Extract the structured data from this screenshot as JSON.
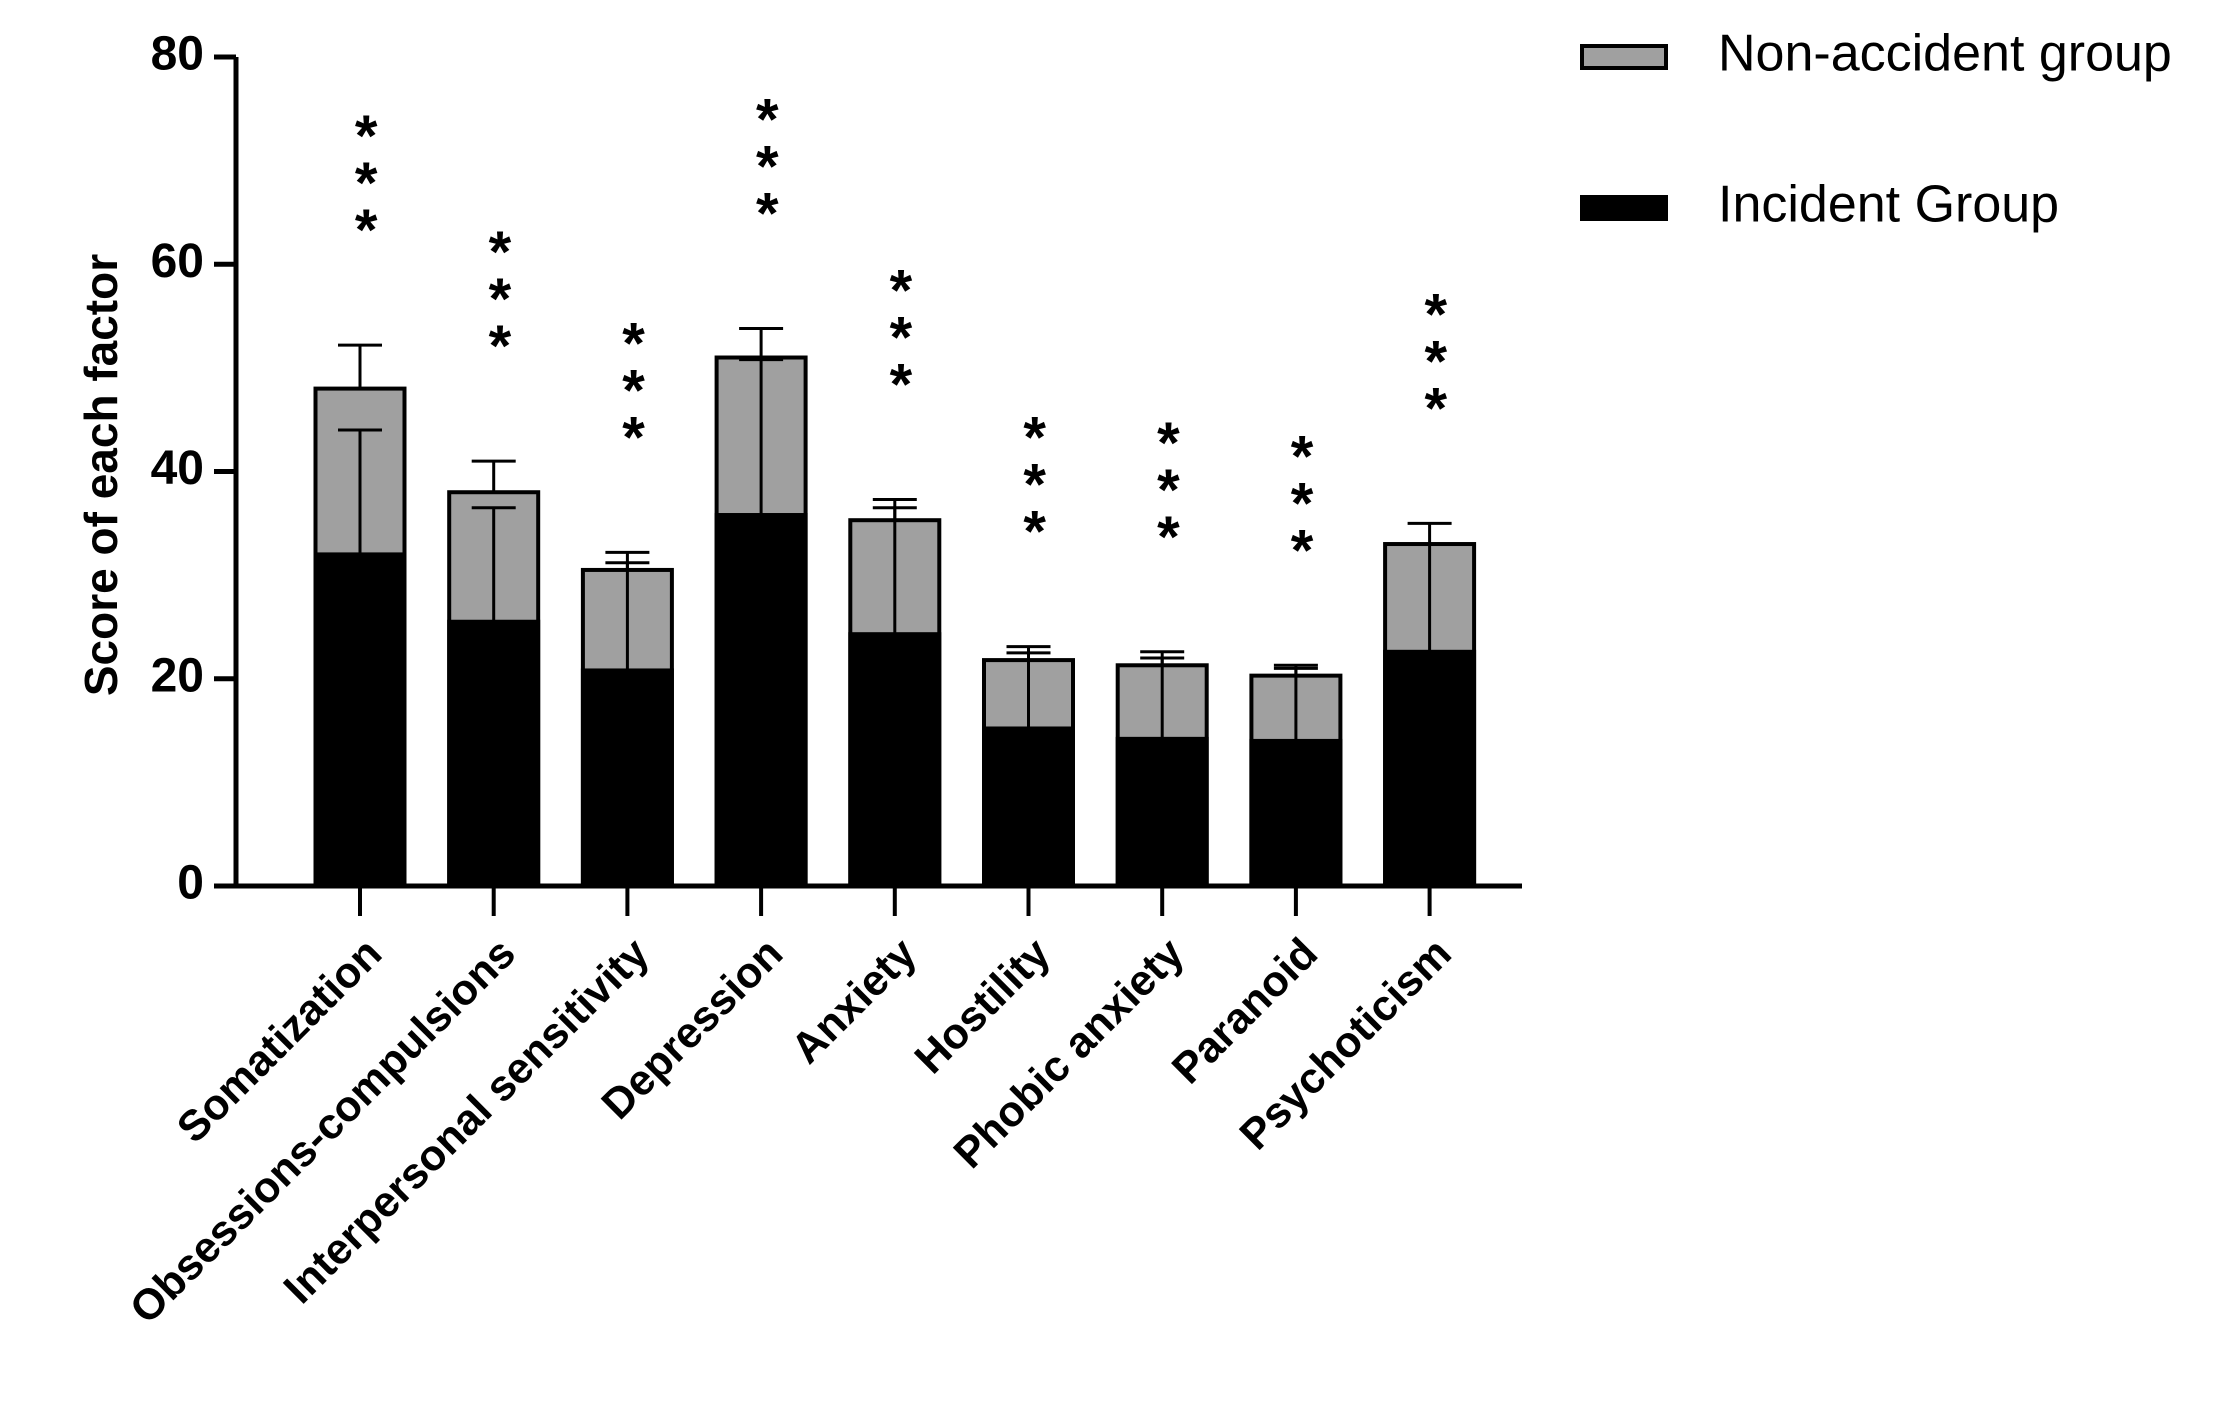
{
  "chart_data": {
    "type": "bar",
    "y_label": "Score of each factor",
    "categories": [
      "Somatization",
      "Obsessions-compulsions",
      "Interpersonal sensitivity",
      "Depression",
      "Anxiety",
      "Hostility",
      "Phobic anxiety",
      "Paranoid",
      "Psychoticism"
    ],
    "series": [
      {
        "name": "Non-accident group",
        "color": "#a0a0a0",
        "values": [
          48,
          38,
          30.5,
          51,
          35.3,
          21.8,
          21.3,
          20.3,
          33
        ],
        "errors": [
          4.2,
          3,
          1.7,
          2.8,
          2,
          1.3,
          1.3,
          1,
          2
        ]
      },
      {
        "name": "Incident Group",
        "color": "#000000",
        "values": [
          32,
          25.5,
          20.8,
          35.8,
          24.3,
          15.2,
          14.2,
          14,
          22.6
        ],
        "errors": [
          12,
          11,
          10.4,
          15,
          12.2,
          7.3,
          7.8,
          7,
          10.4
        ]
      }
    ],
    "annotations": [
      "***",
      "***",
      "***",
      "***",
      "***",
      "***",
      "***",
      "***",
      "***"
    ],
    "ylim": [
      0,
      80
    ],
    "yticks": [
      0,
      20,
      40,
      60,
      80
    ],
    "grid": false,
    "legend": "top-right"
  }
}
